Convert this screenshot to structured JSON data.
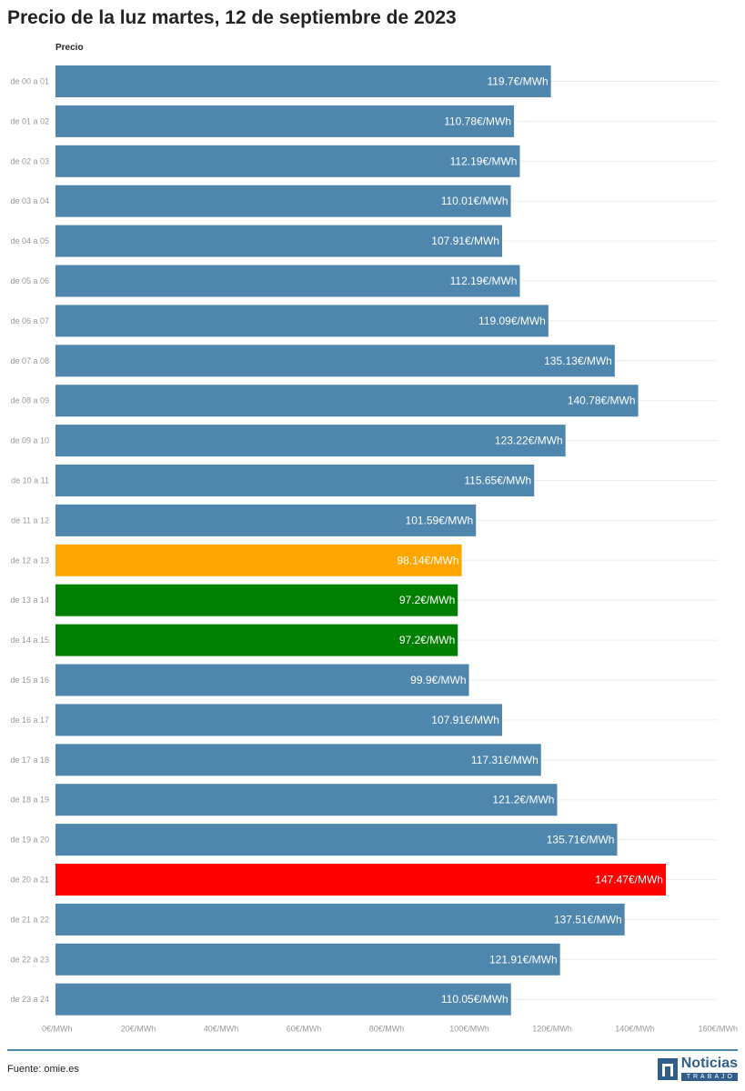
{
  "title": "Precio de la luz martes, 12 de septiembre de 2023",
  "source": "Fuente: omie.es",
  "logo": {
    "name": "Noticias",
    "sub": "TRABAJO"
  },
  "colors": {
    "default": "#4f86ad",
    "lowest": "#008000",
    "second_lowest": "#ffa500",
    "highest": "#ff0000"
  },
  "chart_data": {
    "type": "bar",
    "orientation": "horizontal",
    "series_name": "Precio",
    "unit": "€/MWh",
    "xlim": [
      0,
      160
    ],
    "ticks": [
      0,
      20,
      40,
      60,
      80,
      100,
      120,
      140,
      160
    ],
    "tick_labels": [
      "0€/MWh",
      "20€/MWh",
      "40€/MWh",
      "60€/MWh",
      "80€/MWh",
      "100€/MWh",
      "120€/MWh",
      "140€/MWh",
      "160€/MWh"
    ],
    "grid": true,
    "categories": [
      "de 00 a 01",
      "de 01 a 02",
      "de 02 a 03",
      "de 03 a 04",
      "de 04 a 05",
      "de 05 a 06",
      "de 06 a 07",
      "de 07 a 08",
      "de 08 a 09",
      "de 09 a 10",
      "de 10 a 11",
      "de 11 a 12",
      "de 12 a 13",
      "de 13 a 14",
      "de 14 a 15",
      "de 15 a 16",
      "de 16 a 17",
      "de 17 a 18",
      "de 18 a 19",
      "de 19 a 20",
      "de 20 a 21",
      "de 21 a 22",
      "de 22 a 23",
      "de 23 a 24"
    ],
    "values": [
      119.7,
      110.78,
      112.19,
      110.01,
      107.91,
      112.19,
      119.09,
      135.13,
      140.78,
      123.22,
      115.65,
      101.59,
      98.14,
      97.2,
      97.2,
      99.9,
      107.91,
      117.31,
      121.2,
      135.71,
      147.47,
      137.51,
      121.91,
      110.05
    ],
    "labels": [
      "119.7€/MWh",
      "110.78€/MWh",
      "112.19€/MWh",
      "110.01€/MWh",
      "107.91€/MWh",
      "112.19€/MWh",
      "119.09€/MWh",
      "135.13€/MWh",
      "140.78€/MWh",
      "123.22€/MWh",
      "115.65€/MWh",
      "101.59€/MWh",
      "98.14€/MWh",
      "97.2€/MWh",
      "97.2€/MWh",
      "99.9€/MWh",
      "107.91€/MWh",
      "117.31€/MWh",
      "121.2€/MWh",
      "135.71€/MWh",
      "147.47€/MWh",
      "137.51€/MWh",
      "121.91€/MWh",
      "110.05€/MWh"
    ],
    "bar_color_keys": [
      "default",
      "default",
      "default",
      "default",
      "default",
      "default",
      "default",
      "default",
      "default",
      "default",
      "default",
      "default",
      "second_lowest",
      "lowest",
      "lowest",
      "default",
      "default",
      "default",
      "default",
      "default",
      "highest",
      "default",
      "default",
      "default"
    ]
  }
}
